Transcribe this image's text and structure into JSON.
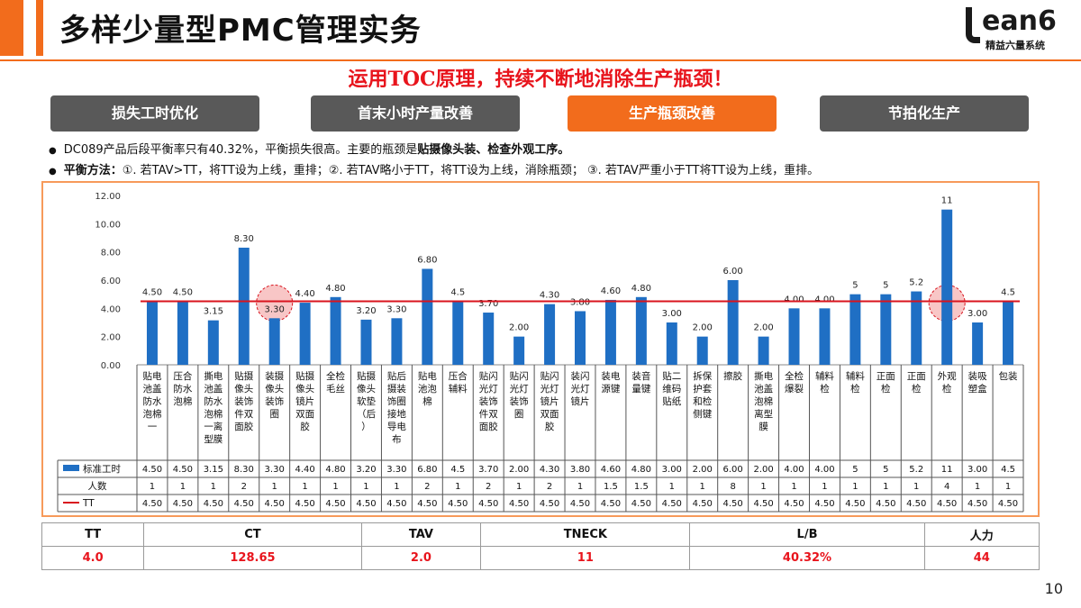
{
  "header": {
    "title": "多样少量型PMC管理实务",
    "logo_main": "ean6",
    "logo_sub": "精益六量系统",
    "subtitle": "运用TOC原理，持续不断地消除生产瓶颈！"
  },
  "tabs": [
    {
      "label": "损失工时优化",
      "active": false
    },
    {
      "label": "首末小时产量改善",
      "active": false
    },
    {
      "label": "生产瓶颈改善",
      "active": true
    },
    {
      "label": "节拍化生产",
      "active": false
    }
  ],
  "bullets": {
    "b1_plain": "DC089产品后段平衡率只有40.32%，平衡损失很高。主要的瓶颈是",
    "b1_bold": "贴摄像头装、检查外观工序。",
    "b2_bold": "平衡方法：",
    "b2_plain": "①. 若TAV>TT，将TT设为上线，重排；②. 若TAV略小于TT，将TT设为上线，消除瓶颈；  ③. 若TAV严重小于TT将TT设为上线，重排。"
  },
  "colors": {
    "bar": "#1f6fc4",
    "tt_line": "#d9141e",
    "accent": "#f26c1c",
    "highlight": "#f4a0a0"
  },
  "chart_data": {
    "type": "bar",
    "y_ticks": [
      "0.00",
      "2.00",
      "4.00",
      "6.00",
      "8.00",
      "10.00",
      "12.00"
    ],
    "ylim": [
      0,
      12
    ],
    "categories": [
      "贴电池盖防水泡棉一",
      "压合防水泡棉",
      "撕电池盖防水泡棉一离型膜",
      "贴摄像头装饰件双面胶",
      "装摄像头装饰圈",
      "贴摄像头镜片双面胶",
      "全检毛丝",
      "贴摄像头软垫（后）",
      "贴后摄装饰圈接地导电布",
      "贴电池泡棉",
      "压合辅料",
      "贴闪光灯装饰件双面胶",
      "贴闪光灯装饰圈",
      "贴闪光灯镜片双面胶",
      "装闪光灯镜片",
      "装电源键",
      "装音量键",
      "贴二维码贴纸",
      "拆保护套和检侧键",
      "擦胶",
      "撕电池盖泡棉离型膜",
      "全检爆裂",
      "辅料检",
      "辅料检",
      "正面检",
      "正面检",
      "外观检",
      "装吸塑盒",
      "包装"
    ],
    "bar_labels": [
      "4.50",
      "4.50",
      "3.15",
      "8.30",
      "3.30",
      "4.40",
      "4.80",
      "3.20",
      "3.30",
      "6.80",
      "4.5",
      "3.70",
      "2.00",
      "4.30",
      "3.80",
      "4.60",
      "4.80",
      "3.00",
      "2.00",
      "6.00",
      "2.00",
      "4.00",
      "4.00",
      "5",
      "5",
      "5.2",
      "11",
      "3.00",
      "4.5"
    ],
    "series": [
      {
        "name": "标准工时",
        "values": [
          4.5,
          4.5,
          3.15,
          8.3,
          3.3,
          4.4,
          4.8,
          3.2,
          3.3,
          6.8,
          4.5,
          3.7,
          2.0,
          4.3,
          3.8,
          4.6,
          4.8,
          3.0,
          2.0,
          6.0,
          2.0,
          4.0,
          4.0,
          5,
          5,
          5.2,
          11,
          3.0,
          4.5
        ]
      },
      {
        "name": "TT",
        "values": [
          4.5,
          4.5,
          4.5,
          4.5,
          4.5,
          4.5,
          4.5,
          4.5,
          4.5,
          4.5,
          4.5,
          4.5,
          4.5,
          4.5,
          4.5,
          4.5,
          4.5,
          4.5,
          4.5,
          4.5,
          4.5,
          4.5,
          4.5,
          4.5,
          4.5,
          4.5,
          4.5,
          4.5,
          4.5
        ]
      }
    ],
    "table_rows": [
      {
        "name": "标准工时",
        "cells": [
          "4.50",
          "4.50",
          "3.15",
          "8.30",
          "3.30",
          "4.40",
          "4.80",
          "3.20",
          "3.30",
          "6.80",
          "4.5",
          "3.70",
          "2.00",
          "4.30",
          "3.80",
          "4.60",
          "4.80",
          "3.00",
          "2.00",
          "6.00",
          "2.00",
          "4.00",
          "4.00",
          "5",
          "5",
          "5.2",
          "11",
          "3.00",
          "4.5"
        ]
      },
      {
        "name": "人数",
        "cells": [
          "1",
          "1",
          "1",
          "2",
          "1",
          "1",
          "1",
          "1",
          "1",
          "2",
          "1",
          "2",
          "1",
          "2",
          "1",
          "1.5",
          "1.5",
          "1",
          "1",
          "8",
          "1",
          "1",
          "1",
          "1",
          "1",
          "1",
          "4",
          "1",
          "1"
        ]
      },
      {
        "name": "TT",
        "cells": [
          "4.50",
          "4.50",
          "4.50",
          "4.50",
          "4.50",
          "4.50",
          "4.50",
          "4.50",
          "4.50",
          "4.50",
          "4.50",
          "4.50",
          "4.50",
          "4.50",
          "4.50",
          "4.50",
          "4.50",
          "4.50",
          "4.50",
          "4.50",
          "4.50",
          "4.50",
          "4.50",
          "4.50",
          "4.50",
          "4.50",
          "4.50",
          "4.50",
          "4.50"
        ]
      }
    ],
    "highlighted_categories": [
      4,
      26
    ]
  },
  "summary": {
    "headers": [
      "TT",
      "CT",
      "TAV",
      "TNECK",
      "L/B",
      "人力"
    ],
    "values": [
      "4.0",
      "128.65",
      "2.0",
      "11",
      "40.32%",
      "44"
    ]
  },
  "page_number": "10"
}
